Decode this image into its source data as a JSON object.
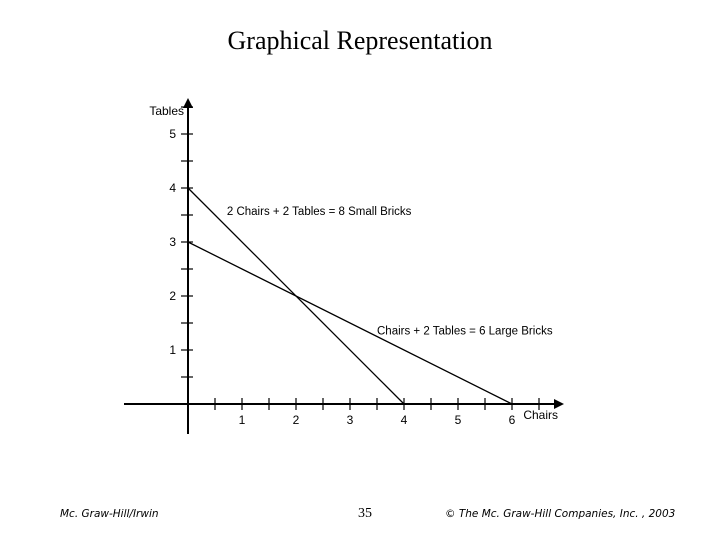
{
  "title": "Graphical Representation",
  "chart_data": {
    "type": "line",
    "xlabel": "Chairs",
    "ylabel": "Tables",
    "xlim": [
      0,
      7
    ],
    "ylim": [
      0,
      5
    ],
    "x_ticks": [
      "1",
      "2",
      "3",
      "4",
      "5",
      "6"
    ],
    "y_ticks": [
      "1",
      "2",
      "3",
      "4",
      "5"
    ],
    "grid": false,
    "series": [
      {
        "name": "2 Chairs + 2 Tables = 8 Small Bricks",
        "points": [
          [
            0,
            4
          ],
          [
            4,
            0
          ]
        ]
      },
      {
        "name": "Chairs + 2 Tables = 6 Large Bricks",
        "points": [
          [
            0,
            3
          ],
          [
            6,
            0
          ]
        ]
      }
    ]
  },
  "footer": {
    "left": "Mc. Graw-Hill/Irwin",
    "page_number": "35",
    "right": "© The Mc. Graw-Hill Companies, Inc. , 2003"
  }
}
